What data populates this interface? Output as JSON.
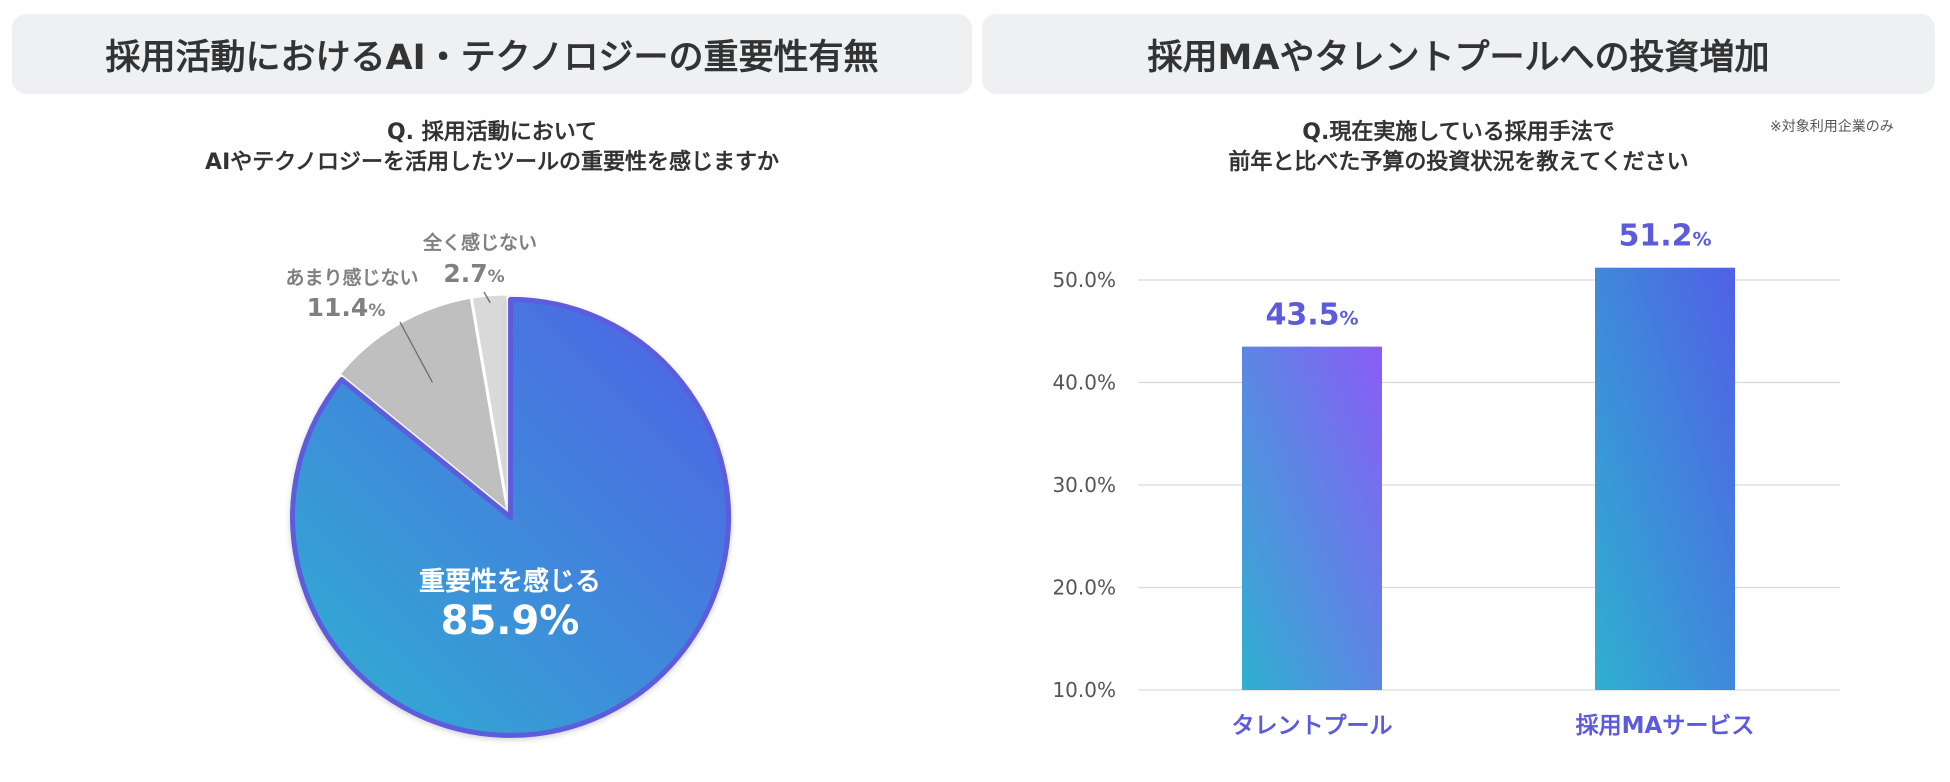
{
  "left_panel": {
    "title": "採用活動におけるAI・テクノロジーの重要性有無",
    "question_line1": "Q. 採用活動において",
    "question_line2": "AIやテクノロジーを活用したツールの重要性を感じますか"
  },
  "right_panel": {
    "title": "採用MAやタレントプールへの投資増加",
    "question_line1": "Q.現在実施している採用手法で",
    "question_line2": "前年と比べた予算の投資状況を教えてください",
    "note": "※対象利用企業のみ"
  },
  "colors": {
    "accent": "#5b5bdc",
    "grad_start": "#2fb0d0",
    "grad_end": "#5060e6",
    "grad_purple": "#8a5cf7",
    "grey": "#bfbfbf",
    "light_grey": "#d9d9d9",
    "label_grey": "#808080"
  },
  "chart_data": [
    {
      "type": "pie",
      "unit": "%",
      "slices": [
        {
          "label": "重要性を感じる",
          "value": 85.9,
          "display": "85.9",
          "color": "#4a7fe0"
        },
        {
          "label": "あまり感じない",
          "value": 11.4,
          "display": "11.4",
          "color": "#bfbfbf"
        },
        {
          "label": "全く感じない",
          "value": 2.7,
          "display": "2.7",
          "color": "#d9d9d9"
        }
      ]
    },
    {
      "type": "bar",
      "unit": "%",
      "categories": [
        "タレントプール",
        "採用MAサービス"
      ],
      "values": [
        43.5,
        51.2
      ],
      "value_labels": [
        "43.5",
        "51.2"
      ],
      "ylim": [
        10,
        55
      ],
      "yticks": [
        10,
        20,
        30,
        40,
        50
      ],
      "ytick_labels": [
        "10.0%",
        "20.0%",
        "30.0%",
        "40.0%",
        "50.0%"
      ],
      "grid": true
    }
  ]
}
